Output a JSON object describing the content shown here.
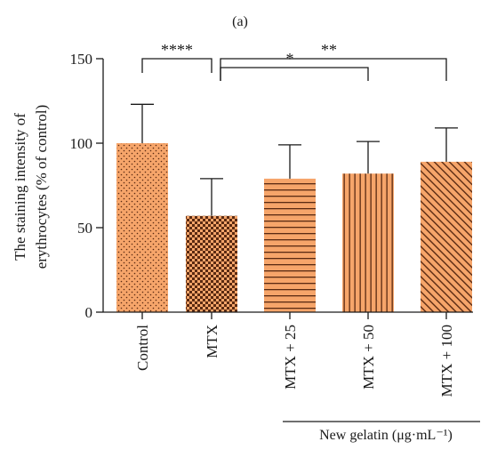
{
  "panel_label": "(a)",
  "chart_data": {
    "type": "bar",
    "title": "",
    "ylabel_line1": "The staining intensity of",
    "ylabel_line2": "erythrocytes (% of control)",
    "xlabel": "",
    "ylim": [
      0,
      150
    ],
    "yticks": [
      0,
      50,
      100,
      150
    ],
    "categories": [
      "Control",
      "MTX",
      "MTX + 25",
      "MTX + 50",
      "MTX + 100"
    ],
    "values": [
      100,
      57,
      79,
      82,
      89
    ],
    "error_upper": [
      123,
      79,
      99,
      101,
      109
    ],
    "patterns": [
      "dots",
      "checker",
      "horizontal",
      "vertical",
      "diagonal"
    ],
    "bar_color": "#F6A56A",
    "pattern_color": "#5a2a12",
    "group_label": "New gelatin (μg·mL⁻¹)",
    "group_members": [
      "MTX + 25",
      "MTX + 50",
      "MTX + 100"
    ],
    "significance": [
      {
        "from": "Control",
        "to": "MTX",
        "label": "****"
      },
      {
        "from": "MTX",
        "to": "MTX + 50",
        "label": "*"
      },
      {
        "from": "MTX",
        "to": "MTX + 100",
        "label": "**"
      }
    ]
  }
}
